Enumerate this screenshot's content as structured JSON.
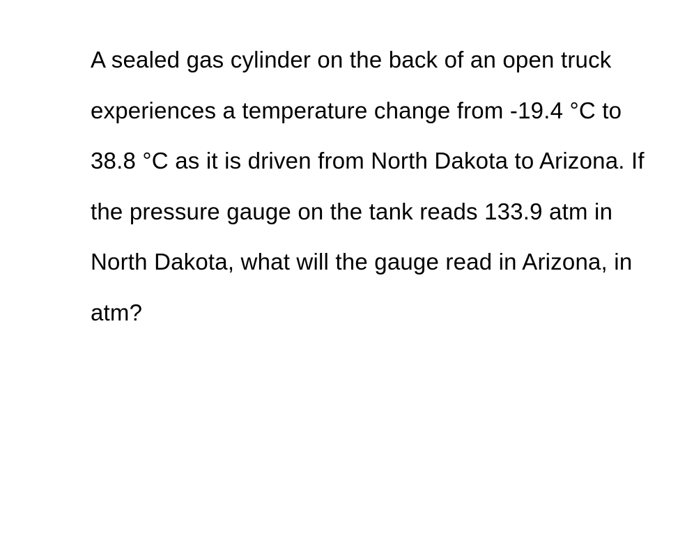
{
  "question": {
    "text": "A sealed gas cylinder on the back of an open truck experiences a temperature change from -19.4 °C to 38.8 °C as it is driven from North Dakota to Arizona. If the pressure gauge on the tank reads 133.9 atm in North Dakota, what will the gauge read in Arizona, in atm?",
    "font_size": 33,
    "line_height": 2.2,
    "text_color": "#000000",
    "background_color": "#ffffff",
    "font_weight": 400
  }
}
